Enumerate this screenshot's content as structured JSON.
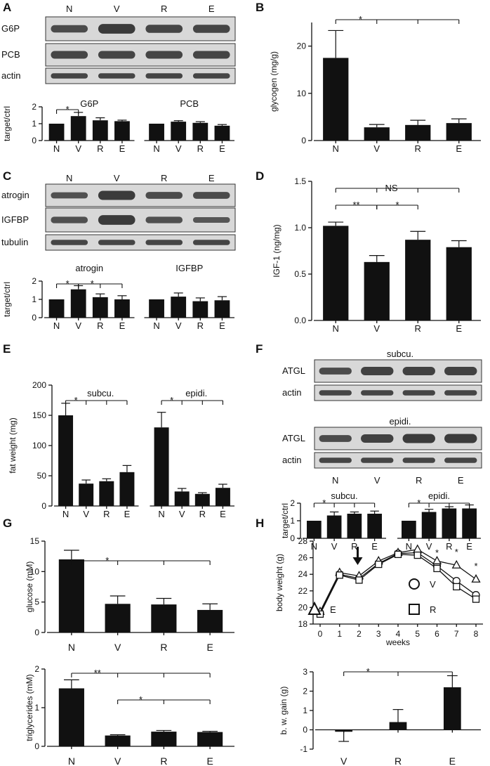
{
  "panels": {
    "A": {
      "letter": "A",
      "lanes": [
        "N",
        "V",
        "R",
        "E"
      ],
      "blots": [
        "G6P",
        "PCB",
        "actin"
      ],
      "chart": {
        "type": "bar",
        "ylabel": "target/ctrl",
        "ylim": [
          0,
          2
        ],
        "yticks": [
          "0",
          "1",
          "2"
        ],
        "groups": [
          {
            "title": "G6P",
            "categories": [
              "N",
              "V",
              "R",
              "E"
            ],
            "values": [
              1.0,
              1.45,
              1.2,
              1.15
            ],
            "errors": [
              0.0,
              0.22,
              0.15,
              0.06
            ]
          },
          {
            "title": "PCB",
            "categories": [
              "N",
              "V",
              "R",
              "E"
            ],
            "values": [
              1.0,
              1.12,
              1.05,
              0.88
            ],
            "errors": [
              0.0,
              0.06,
              0.07,
              0.07
            ]
          }
        ],
        "sig": [
          "*"
        ]
      }
    },
    "B": {
      "letter": "B",
      "chart": {
        "type": "bar",
        "ylabel": "glycogen (mg/g)",
        "ylim": [
          0,
          25
        ],
        "yticks": [
          "0",
          "10",
          "20"
        ],
        "categories": [
          "N",
          "V",
          "R",
          "E"
        ],
        "values": [
          17.5,
          2.8,
          3.3,
          3.7
        ],
        "errors": [
          5.8,
          0.6,
          1.0,
          0.9
        ],
        "sig": [
          "*"
        ]
      }
    },
    "C": {
      "letter": "C",
      "lanes": [
        "N",
        "V",
        "R",
        "E"
      ],
      "blots": [
        "atrogin",
        "IGFBP",
        "tubulin"
      ],
      "chart": {
        "type": "bar",
        "ylabel": "target/ctrl",
        "ylim": [
          0,
          2
        ],
        "yticks": [
          "0",
          "1",
          "2"
        ],
        "groups": [
          {
            "title": "atrogin",
            "categories": [
              "N",
              "V",
              "R",
              "E"
            ],
            "values": [
              1.0,
              1.55,
              1.12,
              1.0
            ],
            "errors": [
              0.0,
              0.2,
              0.18,
              0.2
            ]
          },
          {
            "title": "IGFBP",
            "categories": [
              "N",
              "V",
              "R",
              "E"
            ],
            "values": [
              1.0,
              1.15,
              0.9,
              0.95
            ],
            "errors": [
              0.0,
              0.2,
              0.18,
              0.2
            ]
          }
        ],
        "sig": [
          "*",
          "*"
        ]
      }
    },
    "D": {
      "letter": "D",
      "chart": {
        "type": "bar",
        "ylabel": "IGF-1 (ng/mg)",
        "ylim": [
          0,
          1.5
        ],
        "yticks": [
          "0.0",
          "0.5",
          "1.0",
          "1.5"
        ],
        "categories": [
          "N",
          "V",
          "R",
          "E"
        ],
        "values": [
          1.02,
          0.63,
          0.87,
          0.79
        ],
        "errors": [
          0.04,
          0.07,
          0.09,
          0.07
        ],
        "sig": [
          "NS",
          "**",
          "*"
        ]
      }
    },
    "E": {
      "letter": "E",
      "chart": {
        "type": "bar",
        "ylabel": "fat weight (mg)",
        "ylim": [
          0,
          200
        ],
        "yticks": [
          "0",
          "50",
          "100",
          "150",
          "200"
        ],
        "groups": [
          {
            "title": "subcu.",
            "categories": [
              "N",
              "V",
              "R",
              "E"
            ],
            "values": [
              150,
              37,
              41,
              56
            ],
            "errors": [
              20,
              6,
              4,
              11
            ]
          },
          {
            "title": "epidi.",
            "categories": [
              "N",
              "V",
              "R",
              "E"
            ],
            "values": [
              130,
              24,
              20,
              30
            ],
            "errors": [
              25,
              5,
              2,
              6
            ]
          }
        ],
        "sig": [
          "*",
          "*"
        ]
      }
    },
    "F": {
      "letter": "F",
      "lanes": [
        "N",
        "V",
        "R",
        "E"
      ],
      "blot_titles": [
        "subcu.",
        "epidi."
      ],
      "blots": [
        "ATGL",
        "actin",
        "ATGL",
        "actin"
      ],
      "chart": {
        "type": "bar",
        "ylabel": "target/ctrl",
        "ylim": [
          0,
          2
        ],
        "yticks": [
          "0",
          "1",
          "2"
        ],
        "groups": [
          {
            "title": "subcu.",
            "categories": [
              "N",
              "V",
              "R",
              "E"
            ],
            "values": [
              1.0,
              1.3,
              1.4,
              1.4
            ],
            "errors": [
              0.0,
              0.2,
              0.1,
              0.15
            ]
          },
          {
            "title": "epidi.",
            "categories": [
              "N",
              "V",
              "R",
              "E"
            ],
            "values": [
              1.0,
              1.5,
              1.7,
              1.7
            ],
            "errors": [
              0.0,
              0.15,
              0.1,
              0.2
            ]
          }
        ],
        "sig": [
          "*",
          "*"
        ]
      }
    },
    "G": {
      "letter": "G",
      "charts": [
        {
          "type": "bar",
          "ylabel": "glucose (mM)",
          "ylim": [
            0,
            15
          ],
          "yticks": [
            "0",
            "5",
            "10",
            "15"
          ],
          "categories": [
            "N",
            "V",
            "R",
            "E"
          ],
          "values": [
            12,
            4.7,
            4.6,
            3.7
          ],
          "errors": [
            1.5,
            1.3,
            1.0,
            1.0
          ],
          "sig": [
            "*"
          ]
        },
        {
          "type": "bar",
          "ylabel": "triglycerides (mM)",
          "ylim": [
            0,
            2
          ],
          "yticks": [
            "0",
            "1",
            "2"
          ],
          "categories": [
            "N",
            "V",
            "R",
            "E"
          ],
          "values": [
            1.5,
            0.28,
            0.38,
            0.37
          ],
          "errors": [
            0.22,
            0.02,
            0.03,
            0.02
          ],
          "sig": [
            "**",
            "*"
          ]
        }
      ]
    },
    "H": {
      "letter": "H",
      "line": {
        "type": "line",
        "ylabel": "body weight (g)",
        "xlabel": "weeks",
        "ylim": [
          18,
          28
        ],
        "yticks": [
          "18",
          "20",
          "22",
          "24",
          "26",
          "28"
        ],
        "xticks": [
          "0",
          "1",
          "2",
          "3",
          "4",
          "5",
          "6",
          "7",
          "8"
        ],
        "series": [
          {
            "name": "V",
            "marker": "circle",
            "values": [
              19.3,
              24.0,
              23.5,
              25.3,
              26.5,
              26.6,
              25.0,
              23.2,
              21.5
            ]
          },
          {
            "name": "E",
            "marker": "triangle",
            "values": [
              19.5,
              24.2,
              23.8,
              25.6,
              26.6,
              27.0,
              25.6,
              25.1,
              23.4
            ]
          },
          {
            "name": "R",
            "marker": "square",
            "values": [
              19.2,
              23.9,
              23.3,
              25.2,
              26.4,
              26.3,
              24.7,
              22.5,
              21.0
            ]
          }
        ],
        "arrow_at_week": 2,
        "sig": [
          "*",
          "*",
          "*"
        ]
      },
      "bar": {
        "type": "bar",
        "ylabel": "b. w. gain (g)",
        "ylim": [
          -1,
          3
        ],
        "yticks": [
          "-1",
          "0",
          "1",
          "2",
          "3"
        ],
        "categories": [
          "V",
          "R",
          "E"
        ],
        "values": [
          -0.1,
          0.4,
          2.2
        ],
        "errors": [
          0.5,
          0.65,
          0.6
        ],
        "sig": [
          "*"
        ]
      }
    }
  }
}
